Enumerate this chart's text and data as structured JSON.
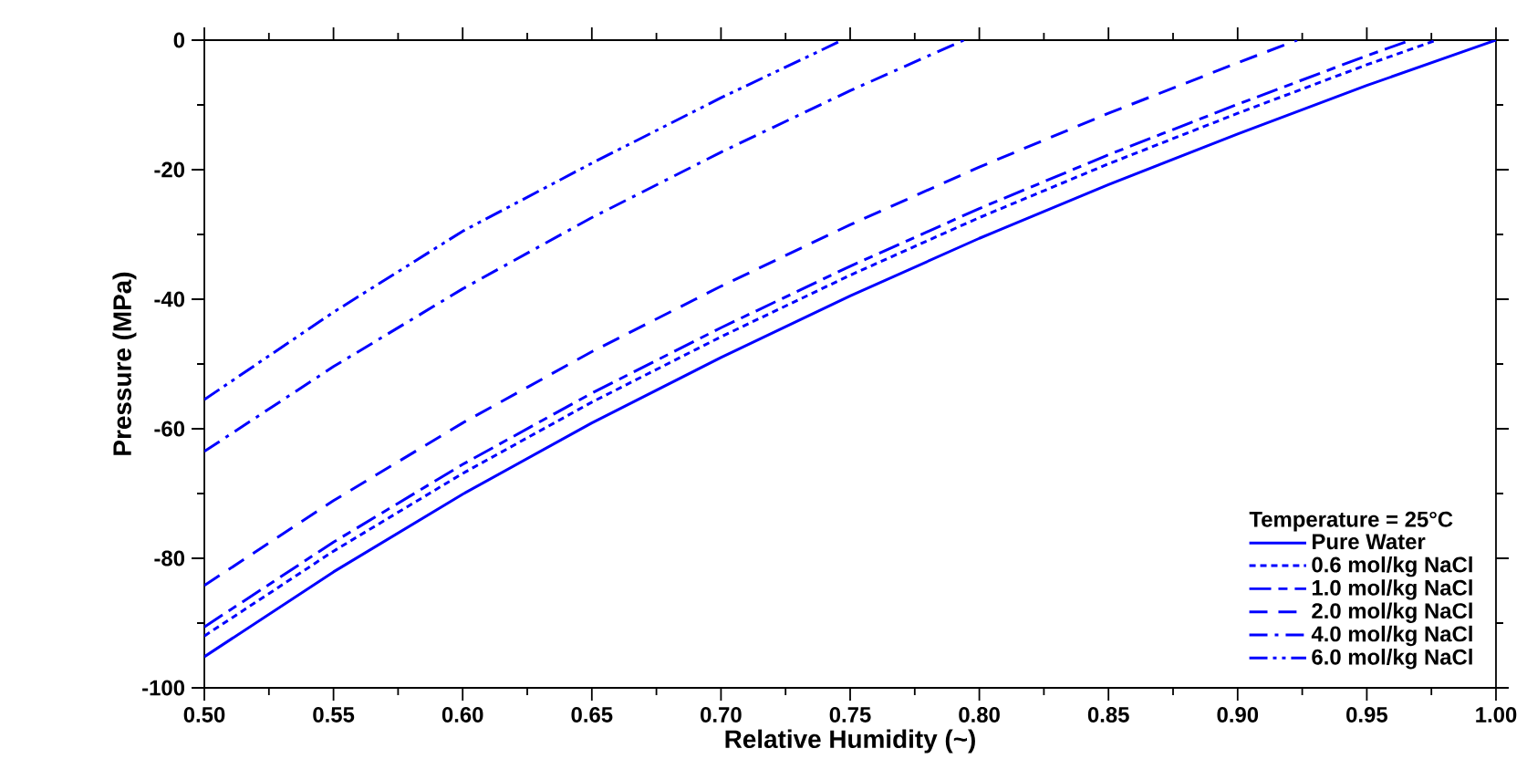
{
  "chart_data": {
    "type": "line",
    "xlabel": "Relative Humidity (~)",
    "ylabel": "Pressure (MPa)",
    "legend_title": "Temperature = 25°C",
    "xlim": [
      0.5,
      1.0
    ],
    "ylim": [
      -100,
      0
    ],
    "xticks": [
      {
        "value": 0.5,
        "label": "0.50"
      },
      {
        "value": 0.55,
        "label": "0.55"
      },
      {
        "value": 0.6,
        "label": "0.60"
      },
      {
        "value": 0.65,
        "label": "0.65"
      },
      {
        "value": 0.7,
        "label": "0.70"
      },
      {
        "value": 0.75,
        "label": "0.75"
      },
      {
        "value": 0.8,
        "label": "0.80"
      },
      {
        "value": 0.85,
        "label": "0.85"
      },
      {
        "value": 0.9,
        "label": "0.90"
      },
      {
        "value": 0.95,
        "label": "0.95"
      },
      {
        "value": 1.0,
        "label": "1.00"
      }
    ],
    "yticks": [
      -100,
      -80,
      -60,
      -40,
      -20,
      0
    ],
    "legend": "bottom right",
    "grid": false,
    "marker": "none",
    "series": [
      {
        "name": "Pure Water",
        "color": "#0000ff",
        "line_style": "solid",
        "x": [
          0.5,
          0.55,
          0.6,
          0.65,
          0.7,
          0.75,
          0.8,
          0.85,
          0.9,
          0.95,
          1.0
        ],
        "values": [
          -95.2,
          -82.1,
          -70.1,
          -59.1,
          -49.0,
          -39.5,
          -30.6,
          -22.3,
          -14.5,
          -7.0,
          0
        ]
      },
      {
        "name": "0.6 mol/kg NaCl",
        "color": "#0000ff",
        "line_style": "dashed",
        "x": [
          0.5,
          0.55,
          0.6,
          0.65,
          0.7,
          0.75,
          0.8,
          0.85,
          0.9,
          0.95,
          0.977
        ],
        "values": [
          -92.0,
          -78.9,
          -66.9,
          -55.9,
          -45.8,
          -36.3,
          -27.4,
          -19.1,
          -11.3,
          -3.8,
          0
        ]
      },
      {
        "name": "1.0 mol/kg NaCl",
        "color": "#0000ff",
        "line_style": "long dash gap",
        "x": [
          0.5,
          0.55,
          0.6,
          0.65,
          0.7,
          0.75,
          0.8,
          0.85,
          0.9,
          0.95,
          0.967
        ],
        "values": [
          -90.6,
          -77.5,
          -65.5,
          -54.5,
          -44.4,
          -34.9,
          -26.0,
          -17.7,
          -9.9,
          -2.4,
          0
        ]
      },
      {
        "name": "2.0 mol/kg NaCl",
        "color": "#0000ff",
        "line_style": "long dashed",
        "x": [
          0.5,
          0.55,
          0.6,
          0.65,
          0.7,
          0.75,
          0.8,
          0.85,
          0.9,
          0.923
        ],
        "values": [
          -84.2,
          -71.1,
          -59.1,
          -48.1,
          -38.0,
          -28.5,
          -19.6,
          -11.3,
          -3.5,
          0
        ]
      },
      {
        "name": "4.0 mol/kg NaCl",
        "color": "#0000ff",
        "line_style": "dash dot",
        "x": [
          0.5,
          0.55,
          0.6,
          0.65,
          0.7,
          0.75,
          0.794
        ],
        "values": [
          -63.5,
          -50.4,
          -38.4,
          -27.4,
          -17.3,
          -7.8,
          0
        ]
      },
      {
        "name": "6.0 mol/kg NaCl",
        "color": "#0000ff",
        "line_style": "dash dot dot",
        "x": [
          0.5,
          0.55,
          0.6,
          0.65,
          0.7,
          0.747
        ],
        "values": [
          -55.5,
          -42.0,
          -29.5,
          -19.0,
          -8.9,
          0
        ]
      }
    ]
  }
}
